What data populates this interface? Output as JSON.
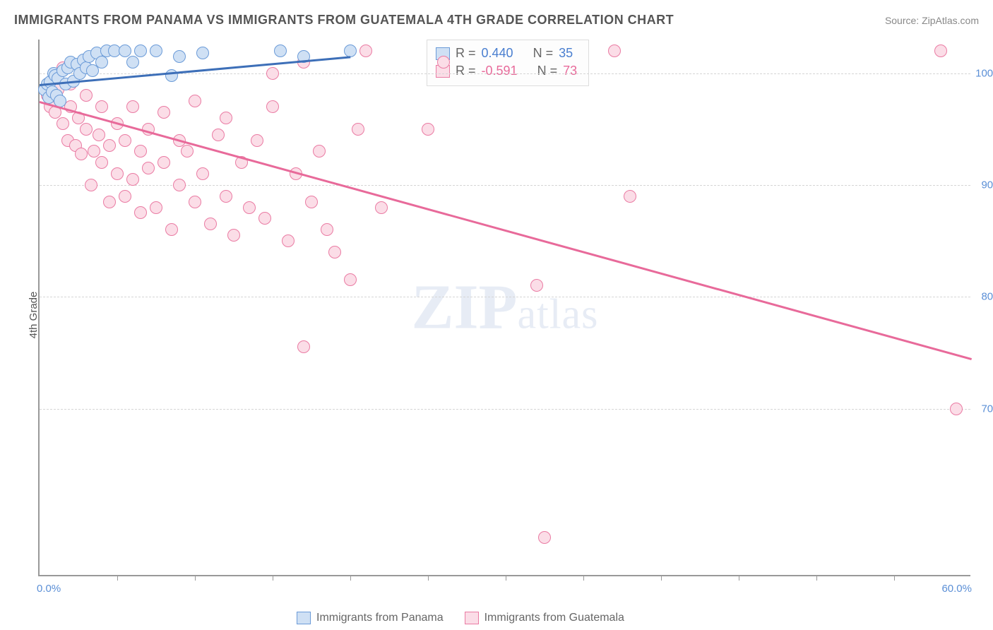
{
  "header": {
    "title": "IMMIGRANTS FROM PANAMA VS IMMIGRANTS FROM GUATEMALA 4TH GRADE CORRELATION CHART",
    "source_prefix": "Source: ",
    "source_name": "ZipAtlas.com"
  },
  "chart": {
    "type": "scatter",
    "ylabel": "4th Grade",
    "watermark": {
      "zip": "ZIP",
      "atlas": "atlas"
    },
    "xlim": [
      0,
      60
    ],
    "ylim": [
      55,
      103
    ],
    "x_ticks_minor_step": 5,
    "y_gridlines": [
      70,
      80,
      90,
      100
    ],
    "y_tick_labels": [
      "70.0%",
      "80.0%",
      "90.0%",
      "100.0%"
    ],
    "x_tick_labels": {
      "left": "0.0%",
      "right": "60.0%"
    },
    "background_color": "#ffffff",
    "grid_color": "#d5d5d5",
    "axis_color": "#999999",
    "marker_radius": 9,
    "marker_stroke_width": 1.5,
    "series": {
      "panama": {
        "label": "Immigrants from Panama",
        "fill": "#cfe0f4",
        "stroke": "#6b9bd8",
        "correlation_R": "0.440",
        "correlation_N": "35",
        "trend": {
          "x1": 0,
          "y1": 99,
          "x2": 20,
          "y2": 101.5,
          "color": "#3d6fb8",
          "width": 2.5
        },
        "points": [
          [
            0.3,
            98.5
          ],
          [
            0.5,
            99.0
          ],
          [
            0.6,
            97.8
          ],
          [
            0.7,
            99.2
          ],
          [
            0.8,
            98.3
          ],
          [
            0.9,
            100.0
          ],
          [
            1.0,
            99.8
          ],
          [
            1.1,
            98.0
          ],
          [
            1.2,
            99.5
          ],
          [
            1.3,
            97.5
          ],
          [
            1.5,
            100.2
          ],
          [
            1.7,
            99.0
          ],
          [
            1.8,
            100.5
          ],
          [
            2.0,
            101.0
          ],
          [
            2.2,
            99.3
          ],
          [
            2.4,
            100.8
          ],
          [
            2.6,
            100.0
          ],
          [
            2.8,
            101.2
          ],
          [
            3.0,
            100.5
          ],
          [
            3.2,
            101.5
          ],
          [
            3.4,
            100.2
          ],
          [
            3.7,
            101.8
          ],
          [
            4.0,
            101.0
          ],
          [
            4.3,
            102.0
          ],
          [
            4.8,
            102.0
          ],
          [
            5.5,
            102.0
          ],
          [
            6.0,
            101.0
          ],
          [
            6.5,
            102.0
          ],
          [
            7.5,
            102.0
          ],
          [
            8.5,
            99.8
          ],
          [
            9.0,
            101.5
          ],
          [
            10.5,
            101.8
          ],
          [
            15.5,
            102.0
          ],
          [
            17.0,
            101.5
          ],
          [
            20.0,
            102.0
          ]
        ]
      },
      "guatemala": {
        "label": "Immigrants from Guatemala",
        "fill": "#fbdde7",
        "stroke": "#ea7ba3",
        "correlation_R": "-0.591",
        "correlation_N": "73",
        "trend": {
          "x1": 0,
          "y1": 97.5,
          "x2": 60,
          "y2": 74.5,
          "color": "#e86a9a",
          "width": 2.5
        },
        "points": [
          [
            0.5,
            98.0
          ],
          [
            0.7,
            97.0
          ],
          [
            1.0,
            99.5
          ],
          [
            1.0,
            96.5
          ],
          [
            1.2,
            98.5
          ],
          [
            1.5,
            95.5
          ],
          [
            1.5,
            100.5
          ],
          [
            1.8,
            94.0
          ],
          [
            2.0,
            97.0
          ],
          [
            2.0,
            99.0
          ],
          [
            2.3,
            93.5
          ],
          [
            2.5,
            96.0
          ],
          [
            2.7,
            92.8
          ],
          [
            3.0,
            95.0
          ],
          [
            3.0,
            98.0
          ],
          [
            3.3,
            90.0
          ],
          [
            3.5,
            93.0
          ],
          [
            3.8,
            94.5
          ],
          [
            4.0,
            92.0
          ],
          [
            4.0,
            97.0
          ],
          [
            4.5,
            88.5
          ],
          [
            4.5,
            93.5
          ],
          [
            5.0,
            91.0
          ],
          [
            5.0,
            95.5
          ],
          [
            5.5,
            89.0
          ],
          [
            5.5,
            94.0
          ],
          [
            6.0,
            90.5
          ],
          [
            6.0,
            97.0
          ],
          [
            6.5,
            87.5
          ],
          [
            6.5,
            93.0
          ],
          [
            7.0,
            91.5
          ],
          [
            7.0,
            95.0
          ],
          [
            7.5,
            88.0
          ],
          [
            8.0,
            92.0
          ],
          [
            8.0,
            96.5
          ],
          [
            8.5,
            86.0
          ],
          [
            9.0,
            90.0
          ],
          [
            9.0,
            94.0
          ],
          [
            9.5,
            93.0
          ],
          [
            10.0,
            88.5
          ],
          [
            10.0,
            97.5
          ],
          [
            10.5,
            91.0
          ],
          [
            11.0,
            86.5
          ],
          [
            11.5,
            94.5
          ],
          [
            12.0,
            89.0
          ],
          [
            12.0,
            96.0
          ],
          [
            12.5,
            85.5
          ],
          [
            13.0,
            92.0
          ],
          [
            13.5,
            88.0
          ],
          [
            14.0,
            94.0
          ],
          [
            14.5,
            87.0
          ],
          [
            15.0,
            97.0
          ],
          [
            15.0,
            100.0
          ],
          [
            16.0,
            85.0
          ],
          [
            16.5,
            91.0
          ],
          [
            17.0,
            75.5
          ],
          [
            17.0,
            101.0
          ],
          [
            17.5,
            88.5
          ],
          [
            18.0,
            93.0
          ],
          [
            18.5,
            86.0
          ],
          [
            19.0,
            84.0
          ],
          [
            20.0,
            81.5
          ],
          [
            20.5,
            95.0
          ],
          [
            21.0,
            102.0
          ],
          [
            22.0,
            88.0
          ],
          [
            25.0,
            95.0
          ],
          [
            26.0,
            101.0
          ],
          [
            32.0,
            81.0
          ],
          [
            32.5,
            58.5
          ],
          [
            37.0,
            102.0
          ],
          [
            38.0,
            89.0
          ],
          [
            58.0,
            102.0
          ],
          [
            59.0,
            70.0
          ]
        ]
      }
    }
  },
  "legend_box": {
    "r_label": "R =",
    "n_label": "N ="
  }
}
